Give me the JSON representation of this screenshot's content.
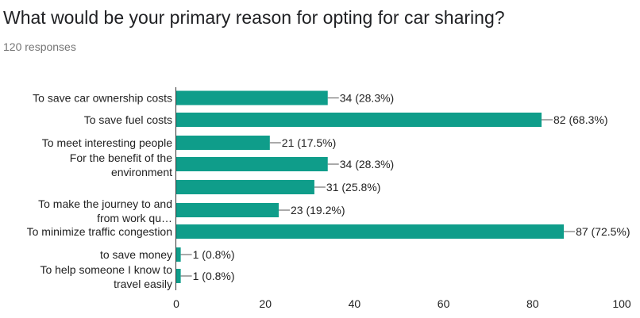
{
  "header": {
    "question": "What would be your primary reason for opting for car sharing?",
    "responses": "120 responses"
  },
  "colors": {
    "bar": "#0f9d8a",
    "axis": "#333333",
    "text": "#222222"
  },
  "chart_data": {
    "type": "bar",
    "orientation": "horizontal",
    "categories": [
      [
        "To save car ownership costs"
      ],
      [
        "To save fuel costs"
      ],
      [
        "To meet interesting people"
      ],
      [
        "For the benefit of the",
        "environment"
      ],
      [],
      [
        "To make the journey to and",
        "from work qu…"
      ],
      [
        "To minimize traffic congestion"
      ],
      [
        "to save money"
      ],
      [
        "To help someone I know to",
        "travel easily"
      ]
    ],
    "values": [
      34,
      82,
      21,
      34,
      31,
      23,
      87,
      1,
      1
    ],
    "data_labels": [
      "34 (28.3%)",
      "82 (68.3%)",
      "21 (17.5%)",
      "34 (28.3%)",
      "31 (25.8%)",
      "23 (19.2%)",
      "87 (72.5%)",
      "1 (0.8%)",
      "1 (0.8%)"
    ],
    "xlim": [
      0,
      100
    ],
    "xticks": [
      0,
      20,
      40,
      60,
      80,
      100
    ],
    "grid": false,
    "legend": "none"
  }
}
